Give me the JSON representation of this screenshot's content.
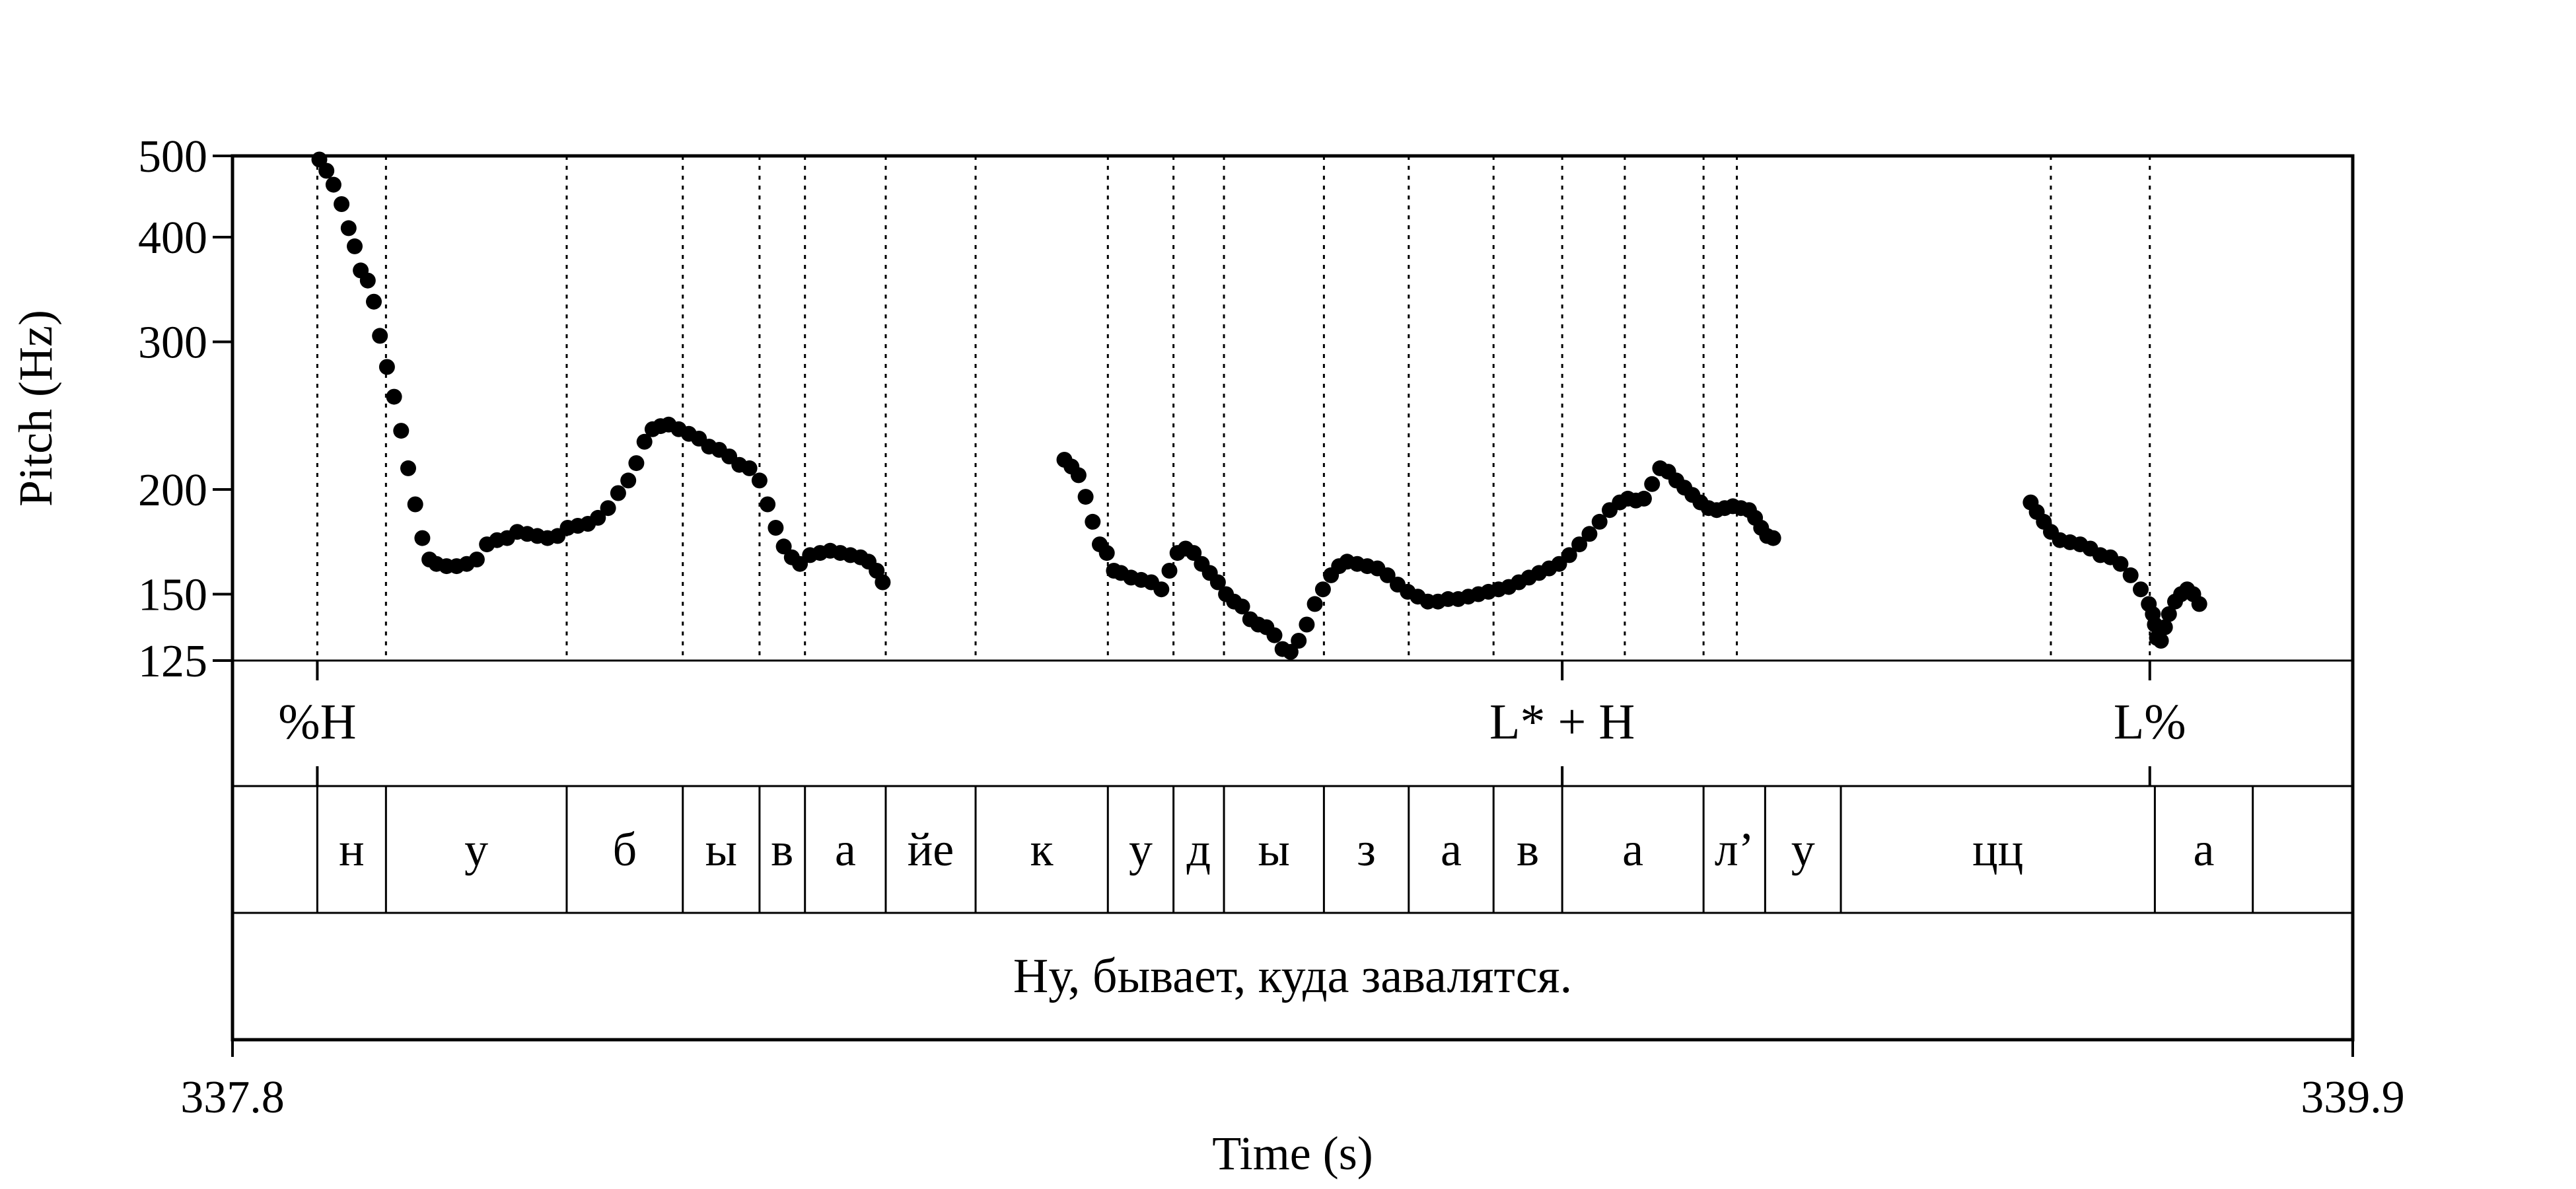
{
  "chart_data": {
    "type": "scatter",
    "title": "",
    "xlabel": "Time (s)",
    "ylabel": "Pitch (Hz)",
    "scale_y": "log",
    "xlim": [
      337.8,
      339.9
    ],
    "ylim": [
      125,
      500
    ],
    "x_tick_labels": [
      "337.8",
      "339.9"
    ],
    "x_ticks": [
      337.8,
      339.9
    ],
    "y_tick_labels": [
      "500",
      "400",
      "300",
      "200",
      "150",
      "125"
    ],
    "y_ticks": [
      500,
      400,
      300,
      200,
      150,
      125
    ],
    "grid": false,
    "boundaries": [
      337.884,
      337.952,
      338.131,
      338.246,
      338.322,
      338.367,
      338.447,
      338.536,
      338.667,
      338.732,
      338.782,
      338.881,
      338.965,
      339.049,
      339.117,
      339.257,
      339.179,
      339.29,
      339.601,
      339.699
    ],
    "tones": [
      {
        "label": "%H",
        "t": 337.884
      },
      {
        "label": "L* + H",
        "t": 339.117
      },
      {
        "label": "L%",
        "t": 339.699
      }
    ],
    "segments": [
      {
        "label": "н",
        "start": 337.884,
        "end": 337.952
      },
      {
        "label": "у",
        "start": 337.952,
        "end": 338.131
      },
      {
        "label": "б",
        "start": 338.131,
        "end": 338.246
      },
      {
        "label": "ы",
        "start": 338.246,
        "end": 338.322
      },
      {
        "label": "в",
        "start": 338.322,
        "end": 338.367
      },
      {
        "label": "а",
        "start": 338.367,
        "end": 338.447
      },
      {
        "label": "йе",
        "start": 338.447,
        "end": 338.536
      },
      {
        "label": "к",
        "start": 338.536,
        "end": 338.667
      },
      {
        "label": "у",
        "start": 338.667,
        "end": 338.732
      },
      {
        "label": "д",
        "start": 338.732,
        "end": 338.782
      },
      {
        "label": "ы",
        "start": 338.782,
        "end": 338.881
      },
      {
        "label": "з",
        "start": 338.881,
        "end": 338.965
      },
      {
        "label": "а",
        "start": 338.965,
        "end": 339.049
      },
      {
        "label": "в",
        "start": 339.049,
        "end": 339.117
      },
      {
        "label": "а",
        "start": 339.117,
        "end": 339.257
      },
      {
        "label": "л’",
        "start": 339.257,
        "end": 339.318
      },
      {
        "label": "у",
        "start": 339.318,
        "end": 339.393
      },
      {
        "label": "цц",
        "start": 339.393,
        "end": 339.704
      },
      {
        "label": "а",
        "start": 339.704,
        "end": 339.801
      }
    ],
    "sentence": "Ну, бывает, куда завалятся.",
    "series": [
      {
        "values": [
          [
            337.886,
            495
          ],
          [
            337.893,
            480
          ],
          [
            337.9,
            462
          ],
          [
            337.908,
            438
          ],
          [
            337.915,
            410
          ],
          [
            337.921,
            390
          ],
          [
            337.927,
            365
          ],
          [
            337.934,
            355
          ],
          [
            337.94,
            335
          ],
          [
            337.946,
            305
          ],
          [
            337.953,
            280
          ],
          [
            337.96,
            258
          ],
          [
            337.967,
            235
          ],
          [
            337.974,
            212
          ],
          [
            337.981,
            192
          ],
          [
            337.988,
            175
          ],
          [
            337.995,
            165
          ],
          [
            338.002,
            163
          ],
          [
            338.012,
            162
          ],
          [
            338.022,
            162
          ],
          [
            338.032,
            163
          ],
          [
            338.042,
            165
          ],
          [
            338.052,
            172
          ],
          [
            338.062,
            174
          ],
          [
            338.072,
            175
          ],
          [
            338.082,
            178
          ],
          [
            338.092,
            177
          ],
          [
            338.102,
            176
          ],
          [
            338.112,
            175
          ],
          [
            338.122,
            176
          ],
          [
            338.132,
            180
          ],
          [
            338.142,
            181
          ],
          [
            338.152,
            182
          ],
          [
            338.162,
            185
          ],
          [
            338.172,
            190
          ],
          [
            338.182,
            198
          ],
          [
            338.192,
            205
          ],
          [
            338.2,
            215
          ],
          [
            338.208,
            228
          ],
          [
            338.216,
            236
          ],
          [
            338.224,
            238
          ],
          [
            338.232,
            239
          ],
          [
            338.242,
            236
          ],
          [
            338.252,
            233
          ],
          [
            338.262,
            230
          ],
          [
            338.272,
            225
          ],
          [
            338.282,
            223
          ],
          [
            338.292,
            219
          ],
          [
            338.302,
            214
          ],
          [
            338.312,
            212
          ],
          [
            338.322,
            205
          ],
          [
            338.33,
            192
          ],
          [
            338.338,
            180
          ],
          [
            338.346,
            171
          ],
          [
            338.354,
            166
          ],
          [
            338.362,
            163
          ],
          [
            338.372,
            167
          ],
          [
            338.382,
            168
          ],
          [
            338.392,
            169
          ],
          [
            338.402,
            168
          ],
          [
            338.412,
            167
          ],
          [
            338.422,
            166
          ],
          [
            338.43,
            164
          ],
          [
            338.438,
            160
          ],
          [
            338.444,
            155
          ],
          [
            338.624,
            217
          ],
          [
            338.631,
            213
          ],
          [
            338.638,
            208
          ],
          [
            338.645,
            196
          ],
          [
            338.652,
            183
          ],
          [
            338.659,
            172
          ],
          [
            338.666,
            168
          ],
          [
            338.673,
            160
          ],
          [
            338.68,
            159
          ],
          [
            338.69,
            157
          ],
          [
            338.7,
            156
          ],
          [
            338.71,
            155
          ],
          [
            338.72,
            152
          ],
          [
            338.728,
            160
          ],
          [
            338.736,
            168
          ],
          [
            338.744,
            170
          ],
          [
            338.752,
            168
          ],
          [
            338.76,
            163
          ],
          [
            338.768,
            159
          ],
          [
            338.776,
            155
          ],
          [
            338.784,
            150
          ],
          [
            338.792,
            147
          ],
          [
            338.8,
            145
          ],
          [
            338.808,
            140
          ],
          [
            338.816,
            138
          ],
          [
            338.824,
            137
          ],
          [
            338.832,
            134
          ],
          [
            338.84,
            129
          ],
          [
            338.848,
            128
          ],
          [
            338.856,
            132
          ],
          [
            338.864,
            138
          ],
          [
            338.872,
            146
          ],
          [
            338.88,
            152
          ],
          [
            338.888,
            158
          ],
          [
            338.896,
            162
          ],
          [
            338.904,
            164
          ],
          [
            338.914,
            163
          ],
          [
            338.924,
            162
          ],
          [
            338.934,
            161
          ],
          [
            338.944,
            158
          ],
          [
            338.954,
            154
          ],
          [
            338.964,
            151
          ],
          [
            338.974,
            149
          ],
          [
            338.984,
            147
          ],
          [
            338.994,
            147
          ],
          [
            339.004,
            148
          ],
          [
            339.014,
            148
          ],
          [
            339.024,
            149
          ],
          [
            339.034,
            150
          ],
          [
            339.044,
            151
          ],
          [
            339.054,
            152
          ],
          [
            339.064,
            153
          ],
          [
            339.074,
            155
          ],
          [
            339.084,
            157
          ],
          [
            339.094,
            159
          ],
          [
            339.104,
            161
          ],
          [
            339.114,
            163
          ],
          [
            339.124,
            167
          ],
          [
            339.134,
            172
          ],
          [
            339.144,
            177
          ],
          [
            339.154,
            183
          ],
          [
            339.164,
            189
          ],
          [
            339.174,
            193
          ],
          [
            339.182,
            195
          ],
          [
            339.19,
            194
          ],
          [
            339.198,
            195
          ],
          [
            339.206,
            203
          ],
          [
            339.214,
            212
          ],
          [
            339.222,
            210
          ],
          [
            339.23,
            205
          ],
          [
            339.238,
            201
          ],
          [
            339.246,
            197
          ],
          [
            339.254,
            193
          ],
          [
            339.262,
            190
          ],
          [
            339.27,
            189
          ],
          [
            339.278,
            190
          ],
          [
            339.286,
            191
          ],
          [
            339.294,
            190
          ],
          [
            339.302,
            189
          ],
          [
            339.308,
            185
          ],
          [
            339.314,
            180
          ],
          [
            339.32,
            176
          ],
          [
            339.326,
            175
          ],
          [
            339.581,
            193
          ],
          [
            339.587,
            188
          ],
          [
            339.594,
            183
          ],
          [
            339.601,
            178
          ],
          [
            339.61,
            174
          ],
          [
            339.62,
            173
          ],
          [
            339.63,
            172
          ],
          [
            339.64,
            170
          ],
          [
            339.65,
            167
          ],
          [
            339.66,
            166
          ],
          [
            339.67,
            163
          ],
          [
            339.68,
            158
          ],
          [
            339.69,
            152
          ],
          [
            339.698,
            146
          ],
          [
            339.702,
            142
          ],
          [
            339.704,
            138
          ],
          [
            339.706,
            133
          ],
          [
            339.71,
            132
          ],
          [
            339.714,
            137
          ],
          [
            339.718,
            142
          ],
          [
            339.724,
            147
          ],
          [
            339.73,
            150
          ],
          [
            339.736,
            152
          ],
          [
            339.742,
            150
          ],
          [
            339.748,
            146
          ]
        ]
      }
    ]
  }
}
